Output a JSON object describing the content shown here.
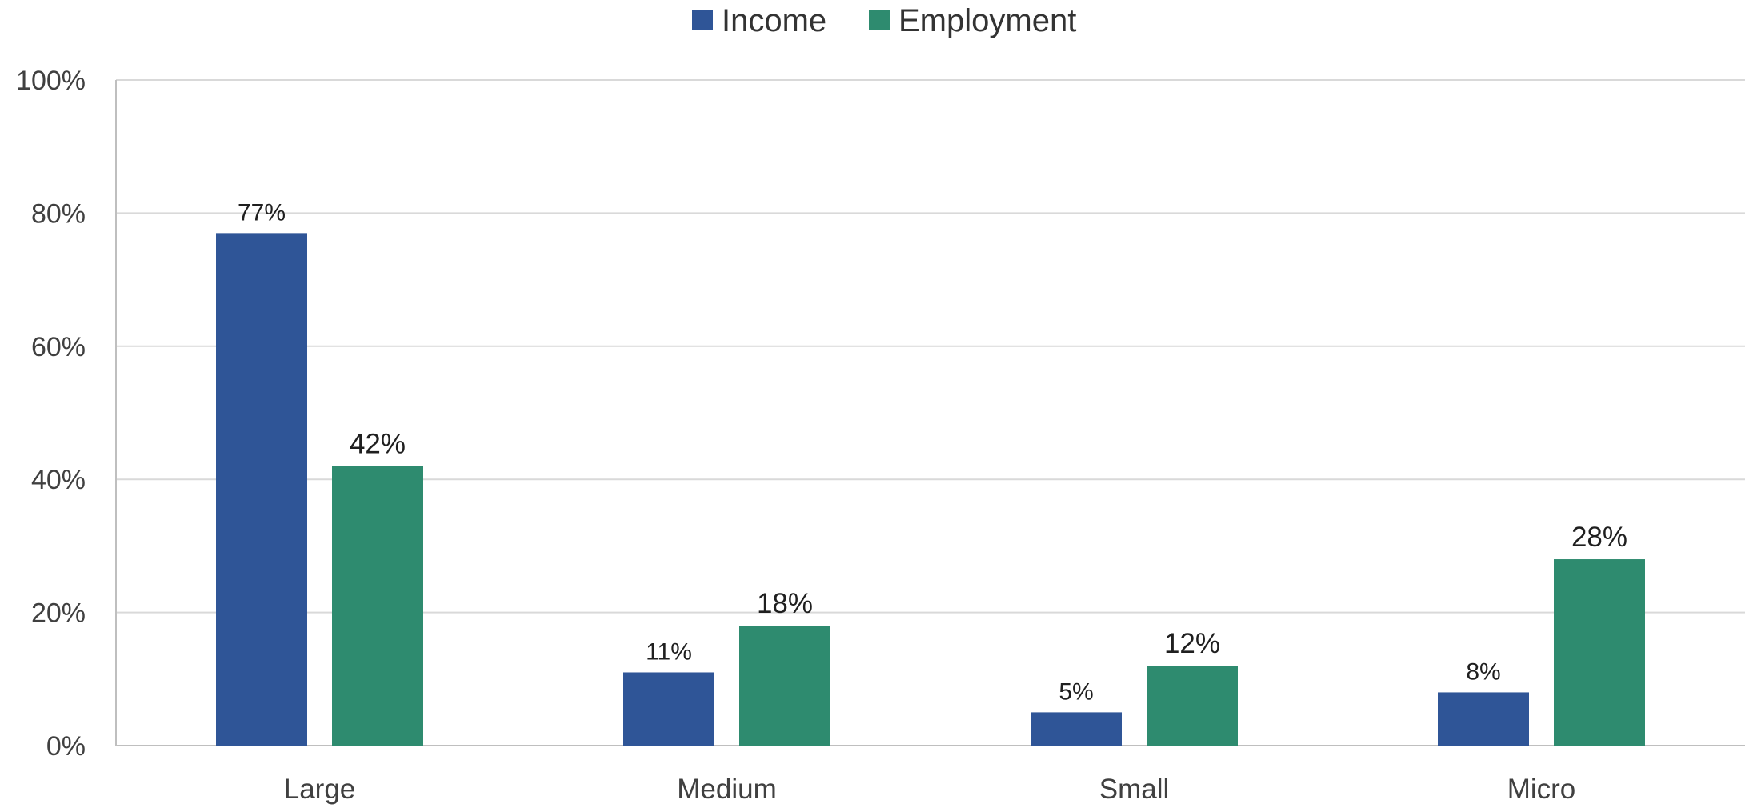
{
  "chart_data": {
    "type": "bar",
    "categories": [
      "Large",
      "Medium",
      "Small",
      "Micro"
    ],
    "series": [
      {
        "name": "Income",
        "color": "#2f5597",
        "values": [
          77,
          11,
          5,
          8
        ],
        "labels": [
          "77%",
          "11%",
          "5%",
          "8%"
        ]
      },
      {
        "name": "Employment",
        "color": "#2e8b6f",
        "values": [
          42,
          18,
          12,
          28
        ],
        "labels": [
          "42%",
          "18%",
          "12%",
          "28%"
        ]
      }
    ],
    "ylim": [
      0,
      100
    ],
    "yticks": [
      "0%",
      "20%",
      "40%",
      "60%",
      "80%",
      "100%"
    ],
    "ytick_values": [
      0,
      20,
      40,
      60,
      80,
      100
    ],
    "grid": true,
    "legend_position": "top-center",
    "gridline_color": "#d9d9d9",
    "axis_color": "#bfbfbf"
  }
}
